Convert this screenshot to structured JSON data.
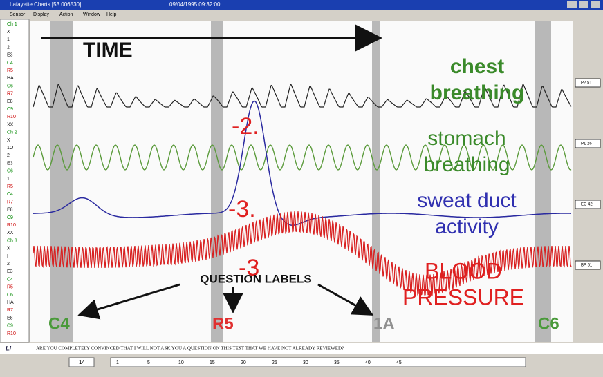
{
  "window": {
    "title": "Lafayette Charts [53.006530]",
    "timestamp": "09/04/1995 09:32:00"
  },
  "menu": [
    "Sensor",
    "Display",
    "Action",
    "Window",
    "Help"
  ],
  "sidebar": [
    "Ch 1",
    "X",
    "1",
    "2",
    "E3",
    "C4",
    "R5",
    "HA",
    "C6",
    "R7",
    "E8",
    "C9",
    "R10",
    "XX",
    "Ch 2",
    "X",
    "1O",
    "2",
    "E3",
    "C6",
    "1",
    "R5",
    "C4",
    "R7",
    "E8",
    "C9",
    "R10",
    "XX",
    "Ch 3",
    "X",
    "I",
    "2",
    "E3",
    "C4",
    "R5",
    "C6",
    "HA",
    "R7",
    "E8",
    "C9",
    "R10"
  ],
  "annotations": {
    "time": "TIME",
    "chest": [
      "chest",
      "breathing"
    ],
    "stomach": [
      "stomach",
      "breathing"
    ],
    "sweat": [
      "sweat duct",
      "activity"
    ],
    "blood": [
      "BLOOD",
      "PRESSURE"
    ]
  },
  "scores": [
    "-2.",
    "-3.",
    "-3"
  ],
  "question_labels": {
    "heading": "QUESTION LABELS",
    "labels": [
      "C4",
      "R5",
      "1A",
      "C6"
    ]
  },
  "channel_tags": [
    "P2 51",
    "P1 26",
    "EC 42",
    "BP 51"
  ],
  "question": "ARE YOU COMPLETELY CONVINCED THAT I WILL NOT ASK YOU A QUESTION ON THIS TEST THAT WE HAVE NOT ALREADY REVIEWED?",
  "scrollbar": {
    "chart": "14",
    "ticks": [
      "1",
      "5",
      "10",
      "15",
      "20",
      "25",
      "30",
      "35",
      "40",
      "45"
    ]
  }
}
